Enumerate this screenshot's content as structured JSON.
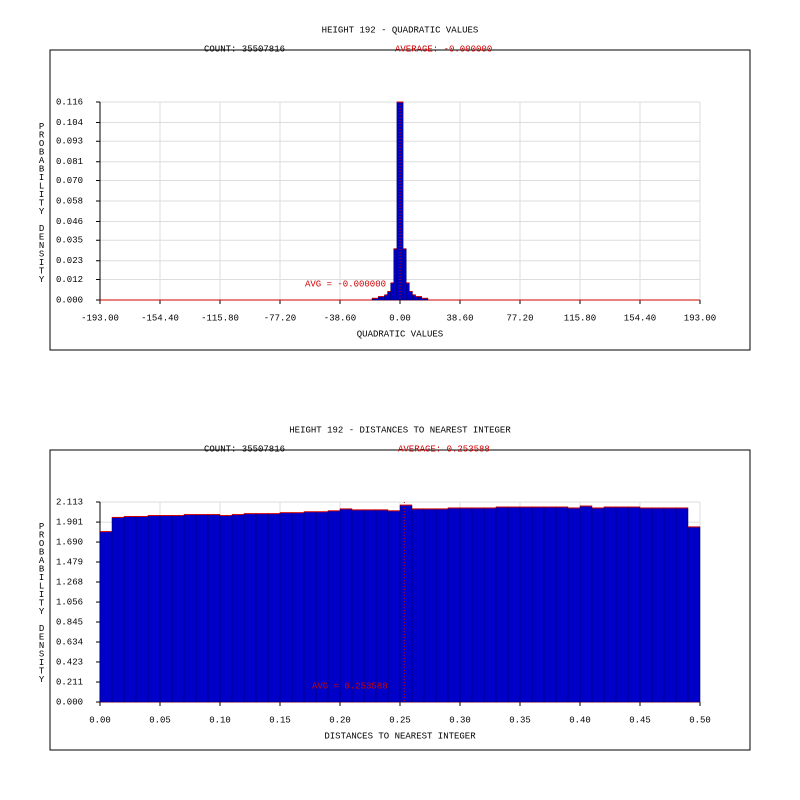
{
  "chart_data": [
    {
      "type": "histogram",
      "title": "HEIGHT 192 - QUADRATIC VALUES",
      "count_label": "COUNT: 35507816",
      "average_label": "AVERAGE: -0.000000",
      "avg_annotation": "AVG = -0.000000",
      "average": 0,
      "xlabel": "QUADRATIC VALUES",
      "ylabel": "PROBABILITY DENSITY",
      "color": "#0000c8",
      "line_color": "#d00000",
      "bins": [
        -20,
        -18,
        -16,
        -14,
        -12,
        -10,
        -8,
        -6,
        -4,
        -2,
        0,
        2,
        4,
        6,
        8,
        10,
        12,
        14,
        16,
        18,
        20
      ],
      "values": [
        0.0,
        0.001,
        0.001,
        0.002,
        0.002,
        0.003,
        0.005,
        0.01,
        0.03,
        0.116,
        0.116,
        0.03,
        0.01,
        0.005,
        0.003,
        0.002,
        0.002,
        0.001,
        0.001,
        0.0
      ],
      "xlim": [
        -193,
        193
      ],
      "ylim": [
        0,
        0.116
      ],
      "xticks": [
        {
          "value": -193,
          "label": "-193.00"
        },
        {
          "value": -154.4,
          "label": "-154.40"
        },
        {
          "value": -115.8,
          "label": "-115.80"
        },
        {
          "value": -77.2,
          "label": "-77.20"
        },
        {
          "value": -38.6,
          "label": "-38.60"
        },
        {
          "value": 0,
          "label": "0.00"
        },
        {
          "value": 38.6,
          "label": "38.60"
        },
        {
          "value": 77.2,
          "label": "77.20"
        },
        {
          "value": 115.8,
          "label": "115.80"
        },
        {
          "value": 154.4,
          "label": "154.40"
        },
        {
          "value": 193,
          "label": "193.00"
        }
      ],
      "yticks": [
        {
          "value": 0,
          "label": "0.000"
        },
        0.012,
        0.023,
        0.035,
        0.046,
        0.058,
        {
          "value": 0.07,
          "label": "0.070"
        },
        0.081,
        0.093,
        0.104,
        0.116
      ],
      "grid": true
    },
    {
      "type": "histogram",
      "title": "HEIGHT 192 - DISTANCES TO NEAREST INTEGER",
      "count_label": "COUNT: 35507816",
      "average_label": "AVERAGE: 0.253588",
      "avg_annotation": "AVG = 0.253588",
      "average": 0.253588,
      "xlabel": "DISTANCES TO NEAREST INTEGER",
      "ylabel": "PROBABILITY DENSITY",
      "color": "#0000c8",
      "line_color": "#d00000",
      "bins": [
        0,
        0.01,
        0.02,
        0.03,
        0.04,
        0.05,
        0.06,
        0.07,
        0.08,
        0.09,
        0.1,
        0.11,
        0.12,
        0.13,
        0.14,
        0.15,
        0.16,
        0.17,
        0.18,
        0.19,
        0.2,
        0.21,
        0.22,
        0.23,
        0.24,
        0.25,
        0.26,
        0.27,
        0.28,
        0.29,
        0.3,
        0.31,
        0.32,
        0.33,
        0.34,
        0.35,
        0.36,
        0.37,
        0.38,
        0.39,
        0.4,
        0.41,
        0.42,
        0.43,
        0.44,
        0.45,
        0.46,
        0.47,
        0.48,
        0.49,
        0.5
      ],
      "values": [
        1.8,
        1.95,
        1.96,
        1.96,
        1.97,
        1.97,
        1.97,
        1.98,
        1.98,
        1.98,
        1.97,
        1.98,
        1.99,
        1.99,
        1.99,
        2.0,
        2.0,
        2.01,
        2.01,
        2.02,
        2.04,
        2.03,
        2.03,
        2.03,
        2.02,
        2.08,
        2.04,
        2.04,
        2.04,
        2.05,
        2.05,
        2.05,
        2.05,
        2.06,
        2.06,
        2.06,
        2.06,
        2.06,
        2.06,
        2.05,
        2.07,
        2.05,
        2.06,
        2.06,
        2.06,
        2.05,
        2.05,
        2.05,
        2.05,
        1.85
      ],
      "xlim": [
        0,
        0.5
      ],
      "ylim": [
        0,
        2.113
      ],
      "xticks": [
        {
          "value": 0,
          "label": "0.00"
        },
        0.05,
        {
          "value": 0.1,
          "label": "0.10"
        },
        0.15,
        {
          "value": 0.2,
          "label": "0.20"
        },
        0.25,
        {
          "value": 0.3,
          "label": "0.30"
        },
        0.35,
        {
          "value": 0.4,
          "label": "0.40"
        },
        0.45,
        {
          "value": 0.5,
          "label": "0.50"
        }
      ],
      "yticks": [
        {
          "value": 0,
          "label": "0.000"
        },
        0.211,
        0.423,
        0.634,
        0.845,
        1.056,
        1.268,
        1.479,
        {
          "value": 1.69,
          "label": "1.690"
        },
        1.901,
        2.113
      ],
      "grid": true
    }
  ]
}
